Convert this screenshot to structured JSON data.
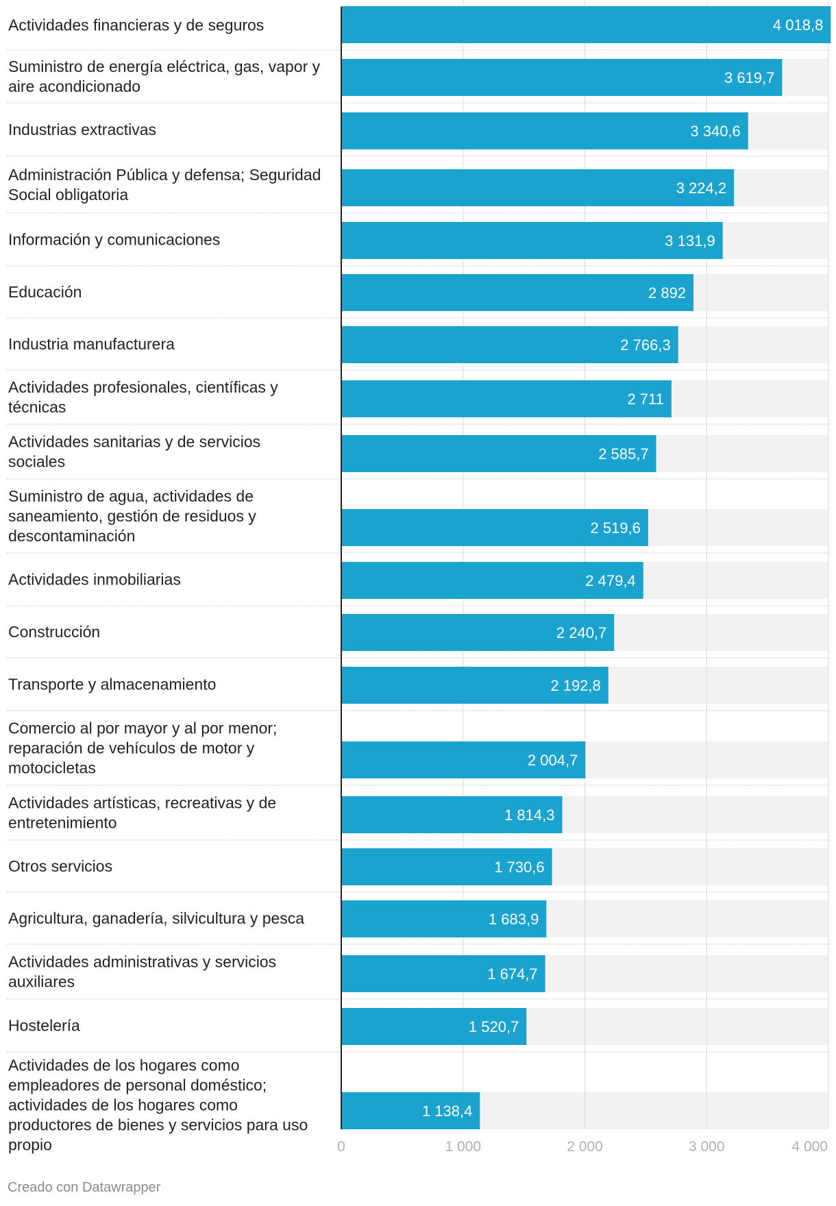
{
  "chart_data": {
    "type": "bar",
    "orientation": "horizontal",
    "title": "",
    "xlabel": "",
    "ylabel": "",
    "xlim": [
      0,
      4000
    ],
    "ticks": [
      0,
      1000,
      2000,
      3000,
      4000
    ],
    "tick_labels": [
      "0",
      "1 000",
      "2 000",
      "3 000",
      "4 000"
    ],
    "grid": true,
    "colors": {
      "bar": "#1aa3cf",
      "track": "#f2f2f2",
      "grid": "#d9d9d9",
      "axis": "#222222",
      "separator": "#c8c8c8"
    },
    "categories": [
      [
        "Actividades financieras y de seguros"
      ],
      [
        "Suministro de energía eléctrica, gas, vapor y",
        "aire acondicionado"
      ],
      [
        "Industrias extractivas"
      ],
      [
        "Administración Pública y defensa; Seguridad",
        "Social obligatoria"
      ],
      [
        "Información y comunicaciones"
      ],
      [
        "Educación"
      ],
      [
        "Industria manufacturera"
      ],
      [
        "Actividades profesionales, científicas y",
        "técnicas"
      ],
      [
        "Actividades sanitarias y de servicios",
        "sociales"
      ],
      [
        "Suministro de agua, actividades de",
        "saneamiento, gestión de residuos y",
        "descontaminación"
      ],
      [
        "Actividades inmobiliarias"
      ],
      [
        "Construcción"
      ],
      [
        "Transporte y almacenamiento"
      ],
      [
        "Comercio al por mayor y al por menor;",
        "reparación de vehículos de motor y",
        "motocicletas"
      ],
      [
        "Actividades artísticas, recreativas y de",
        "entretenimiento"
      ],
      [
        "Otros servicios"
      ],
      [
        "Agricultura, ganadería, silvicultura y pesca"
      ],
      [
        "Actividades administrativas y servicios",
        "auxiliares"
      ],
      [
        "Hostelería"
      ],
      [
        "Actividades de los hogares como",
        "empleadores de personal doméstico;",
        "actividades de los hogares como",
        "productores de bienes y servicios para uso",
        "propio"
      ]
    ],
    "values": [
      4018.8,
      3619.7,
      3340.6,
      3224.2,
      3131.9,
      2892,
      2766.3,
      2711,
      2585.7,
      2519.6,
      2479.4,
      2240.7,
      2192.8,
      2004.7,
      1814.3,
      1730.6,
      1683.9,
      1674.7,
      1520.7,
      1138.4
    ],
    "value_labels": [
      "4 018,8",
      "3 619,7",
      "3 340,6",
      "3 224,2",
      "3 131,9",
      "2 892",
      "2 766,3",
      "2 711",
      "2 585,7",
      "2 519,6",
      "2 479,4",
      "2 240,7",
      "2 192,8",
      "2 004,7",
      "1 814,3",
      "1 730,6",
      "1 683,9",
      "1 674,7",
      "1 520,7",
      "1 138,4"
    ]
  },
  "footer": {
    "credit": "Creado con Datawrapper"
  }
}
